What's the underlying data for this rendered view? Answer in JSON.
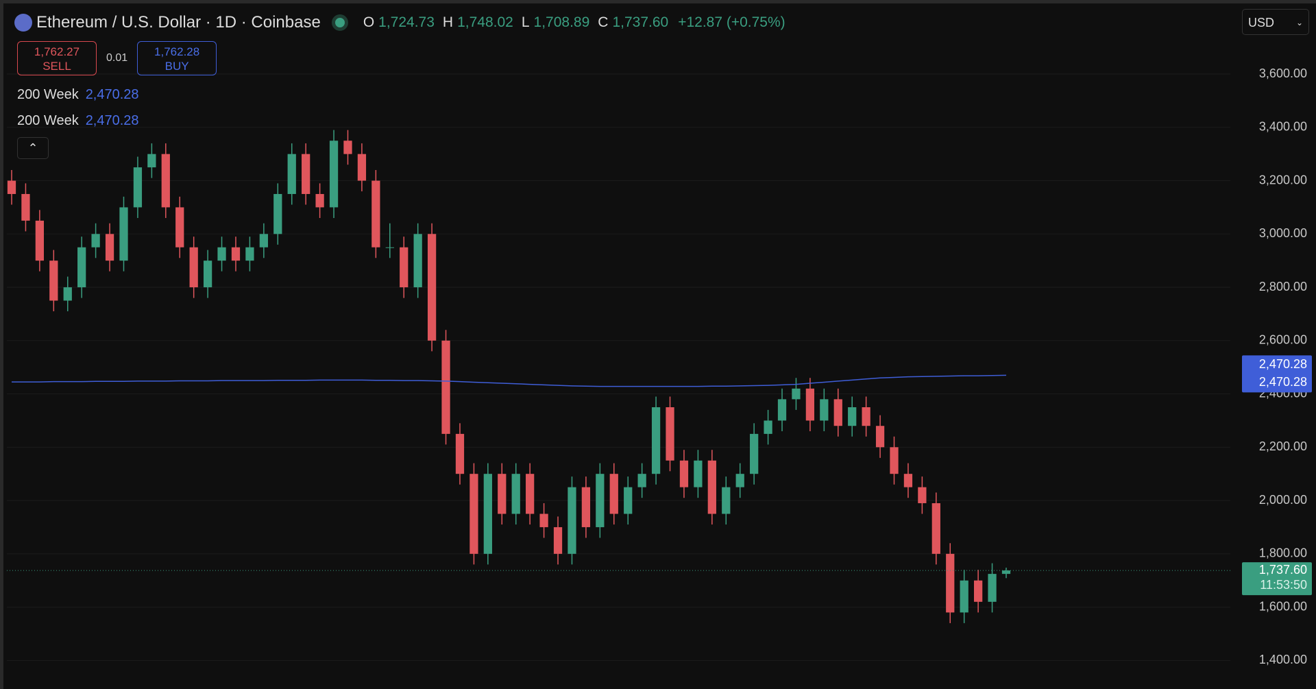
{
  "header": {
    "title": "Ethereum / U.S. Dollar · 1D · Coinbase",
    "open_label": "O",
    "open": "1,724.73",
    "high_label": "H",
    "high": "1,748.02",
    "low_label": "L",
    "low": "1,708.89",
    "close_label": "C",
    "close": "1,737.60",
    "change": "+12.87 (+0.75%)",
    "currency": "USD"
  },
  "trade": {
    "sell_price": "1,762.27",
    "sell_label": "SELL",
    "spread": "0.01",
    "buy_price": "1,762.28",
    "buy_label": "BUY"
  },
  "indicators": [
    {
      "name": "200 Week",
      "value": "2,470.28"
    },
    {
      "name": "200 Week",
      "value": "2,470.28"
    }
  ],
  "price_tags": {
    "ma_1": "2,470.28",
    "ma_2": "2,470.28",
    "last": "1,737.60",
    "countdown": "11:53:50"
  },
  "chart_data": {
    "type": "candlestick",
    "up_color": "#3a9e80",
    "down_color": "#e0565c",
    "ma_color": "#3f5ed8",
    "ylim": [
      1280,
      3865
    ],
    "yticks": [
      {
        "value": 1400,
        "label": "1,400.00"
      },
      {
        "value": 1600,
        "label": "1,600.00"
      },
      {
        "value": 1800,
        "label": "1,800.00"
      },
      {
        "value": 2000,
        "label": "2,000.00"
      },
      {
        "value": 2200,
        "label": "2,200.00"
      },
      {
        "value": 2400,
        "label": "2,400.00"
      },
      {
        "value": 2600,
        "label": "2,600.00"
      },
      {
        "value": 2800,
        "label": "2,800.00"
      },
      {
        "value": 3000,
        "label": "3,000.00"
      },
      {
        "value": 3200,
        "label": "3,200.00"
      },
      {
        "value": 3400,
        "label": "3,400.00"
      },
      {
        "value": 3600,
        "label": "3,600.00"
      }
    ],
    "last_price": 1737.6,
    "ohlc": [
      [
        3200,
        3240,
        3110,
        3150
      ],
      [
        3150,
        3190,
        3010,
        3050
      ],
      [
        3050,
        3090,
        2860,
        2900
      ],
      [
        2900,
        2940,
        2710,
        2750
      ],
      [
        2750,
        2840,
        2710,
        2800
      ],
      [
        2800,
        2990,
        2760,
        2950
      ],
      [
        2950,
        3040,
        2910,
        3000
      ],
      [
        3000,
        3040,
        2860,
        2900
      ],
      [
        2900,
        3140,
        2860,
        3100
      ],
      [
        3100,
        3290,
        3060,
        3250
      ],
      [
        3250,
        3340,
        3210,
        3300
      ],
      [
        3300,
        3340,
        3060,
        3100
      ],
      [
        3100,
        3140,
        2910,
        2950
      ],
      [
        2950,
        2990,
        2760,
        2800
      ],
      [
        2800,
        2940,
        2760,
        2900
      ],
      [
        2900,
        2990,
        2860,
        2950
      ],
      [
        2950,
        2990,
        2860,
        2900
      ],
      [
        2900,
        2990,
        2860,
        2950
      ],
      [
        2950,
        3040,
        2910,
        3000
      ],
      [
        3000,
        3190,
        2960,
        3150
      ],
      [
        3150,
        3340,
        3110,
        3300
      ],
      [
        3300,
        3340,
        3110,
        3150
      ],
      [
        3150,
        3190,
        3060,
        3100
      ],
      [
        3100,
        3390,
        3060,
        3350
      ],
      [
        3350,
        3390,
        3260,
        3300
      ],
      [
        3300,
        3340,
        3160,
        3200
      ],
      [
        3200,
        3240,
        2910,
        2950
      ],
      [
        2950,
        3040,
        2910,
        2950
      ],
      [
        2950,
        2990,
        2760,
        2800
      ],
      [
        2800,
        3040,
        2760,
        3000
      ],
      [
        3000,
        3040,
        2560,
        2600
      ],
      [
        2600,
        2640,
        2210,
        2250
      ],
      [
        2250,
        2290,
        2060,
        2100
      ],
      [
        2100,
        2140,
        1760,
        1800
      ],
      [
        1800,
        2140,
        1760,
        2100
      ],
      [
        2100,
        2140,
        1910,
        1950
      ],
      [
        1950,
        2140,
        1910,
        2100
      ],
      [
        2100,
        2140,
        1910,
        1950
      ],
      [
        1950,
        1990,
        1860,
        1900
      ],
      [
        1900,
        1940,
        1760,
        1800
      ],
      [
        1800,
        2090,
        1760,
        2050
      ],
      [
        2050,
        2090,
        1860,
        1900
      ],
      [
        1900,
        2140,
        1860,
        2100
      ],
      [
        2100,
        2140,
        1910,
        1950
      ],
      [
        1950,
        2090,
        1910,
        2050
      ],
      [
        2050,
        2140,
        2010,
        2100
      ],
      [
        2100,
        2390,
        2060,
        2350
      ],
      [
        2350,
        2390,
        2110,
        2150
      ],
      [
        2150,
        2190,
        2010,
        2050
      ],
      [
        2050,
        2190,
        2010,
        2150
      ],
      [
        2150,
        2190,
        1910,
        1950
      ],
      [
        1950,
        2090,
        1910,
        2050
      ],
      [
        2050,
        2140,
        2010,
        2100
      ],
      [
        2100,
        2290,
        2060,
        2250
      ],
      [
        2250,
        2340,
        2210,
        2300
      ],
      [
        2300,
        2420,
        2260,
        2380
      ],
      [
        2380,
        2460,
        2340,
        2420
      ],
      [
        2420,
        2460,
        2260,
        2300
      ],
      [
        2300,
        2420,
        2260,
        2380
      ],
      [
        2380,
        2420,
        2240,
        2280
      ],
      [
        2280,
        2390,
        2240,
        2350
      ],
      [
        2350,
        2390,
        2240,
        2280
      ],
      [
        2280,
        2320,
        2160,
        2200
      ],
      [
        2200,
        2240,
        2060,
        2100
      ],
      [
        2100,
        2140,
        2010,
        2050
      ],
      [
        2050,
        2090,
        1950,
        1990
      ],
      [
        1990,
        2030,
        1760,
        1800
      ],
      [
        1800,
        1840,
        1540,
        1580
      ],
      [
        1580,
        1740,
        1540,
        1700
      ],
      [
        1700,
        1740,
        1580,
        1620
      ],
      [
        1620,
        1764.73,
        1580,
        1724.73
      ],
      [
        1724.73,
        1748.02,
        1708.89,
        1737.6
      ]
    ],
    "ma": [
      2445,
      2445,
      2445,
      2446,
      2446,
      2446,
      2447,
      2447,
      2447,
      2448,
      2448,
      2448,
      2449,
      2449,
      2449,
      2450,
      2450,
      2450,
      2450,
      2451,
      2451,
      2451,
      2452,
      2452,
      2452,
      2452,
      2451,
      2451,
      2450,
      2450,
      2449,
      2448,
      2446,
      2444,
      2442,
      2440,
      2438,
      2436,
      2434,
      2432,
      2430,
      2429,
      2428,
      2428,
      2428,
      2428,
      2428,
      2428,
      2428,
      2428,
      2429,
      2429,
      2430,
      2431,
      2432,
      2434,
      2436,
      2440,
      2444,
      2448,
      2452,
      2456,
      2460,
      2462,
      2464,
      2465,
      2466,
      2467,
      2468,
      2468,
      2469,
      2470
    ]
  }
}
